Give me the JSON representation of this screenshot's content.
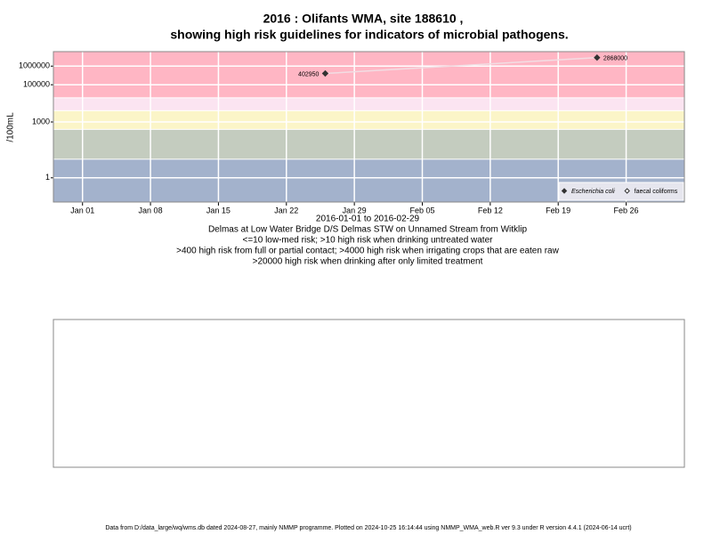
{
  "chart_data": {
    "type": "line",
    "title": [
      "2016 : Olifants WMA, site 188610 ,",
      "showing high risk guidelines for indicators of microbial pathogens."
    ],
    "ylabel": "/100mL",
    "xlabel": "2016-01-01 to 2016-02-29",
    "notes": [
      "Delmas at Low Water Bridge D/S Delmas STW on Unnamed Stream from Witklip",
      "<=10 low-med risk; >10 high risk when drinking untreated water",
      ">400 high risk from full or partial contact; >4000 high risk when irrigating crops that are eaten raw",
      ">20000 high risk when drinking after only limited treatment"
    ],
    "x": [
      "2016-01-26",
      "2016-02-23"
    ],
    "series": [
      {
        "name": "Escherichia coli",
        "color": "#333333",
        "values": [
          402950,
          2868000
        ]
      },
      {
        "name": "faecal coliforms",
        "color": "#333333",
        "values": [
          null,
          null
        ]
      }
    ],
    "line_color": "#f2dde3",
    "log_y": true,
    "ylim": [
      0.05,
      6000000
    ],
    "yticks": [
      1,
      1000,
      100000,
      1000000
    ],
    "xlim": [
      "2015-12-29",
      "2016-03-03"
    ],
    "xticks": [
      {
        "value": "2016-01-01",
        "label": "Jan 01"
      },
      {
        "value": "2016-01-08",
        "label": "Jan 08"
      },
      {
        "value": "2016-01-15",
        "label": "Jan 15"
      },
      {
        "value": "2016-01-22",
        "label": "Jan 22"
      },
      {
        "value": "2016-01-29",
        "label": "Jan 29"
      },
      {
        "value": "2016-02-05",
        "label": "Feb 05"
      },
      {
        "value": "2016-02-12",
        "label": "Feb 12"
      },
      {
        "value": "2016-02-19",
        "label": "Feb 19"
      },
      {
        "value": "2016-02-26",
        "label": "Feb 26"
      }
    ],
    "thresholds": [
      10,
      400,
      4000,
      20000
    ],
    "band_colors": [
      "#a3b2cc",
      "#c4ccbf",
      "#fbf5c8",
      "#fbe4f1",
      "#ffb6c4"
    ],
    "grid": true,
    "legend_position": "bottom-right"
  },
  "footer": "Data from D:/data_large/wq/wms.db dated 2024-08-27, mainly NMMP programme. Plotted on 2024-10-25 16:14:44 using NMMP_WMA_web.R ver 9.3 under R version 4.4.1 (2024-06-14 ucrt)"
}
